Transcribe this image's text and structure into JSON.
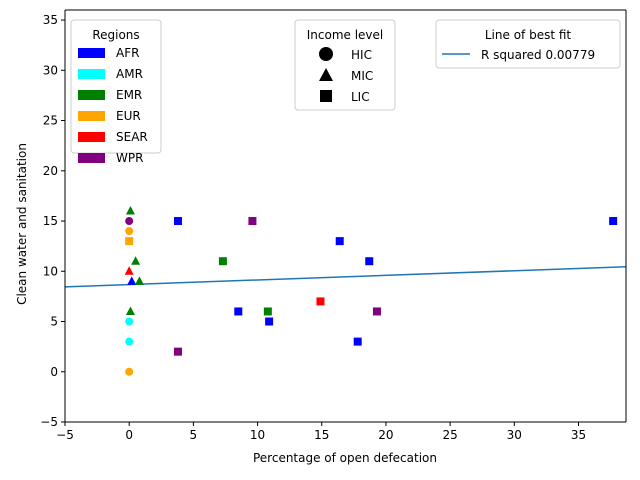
{
  "chart_data": {
    "type": "scatter",
    "xlabel": "Percentage of open defecation",
    "ylabel": "Clean water and sanitation",
    "xlim": [
      -5,
      38.7
    ],
    "ylim": [
      -5,
      36
    ],
    "xticks": [
      -5,
      0,
      5,
      10,
      15,
      20,
      25,
      30,
      35
    ],
    "yticks": [
      -5,
      0,
      5,
      10,
      15,
      20,
      25,
      30,
      35
    ],
    "grid": false,
    "legends": {
      "regions": {
        "title": "Regions",
        "placement": "top-left",
        "items": [
          {
            "label": "AFR",
            "color": "#0000ff"
          },
          {
            "label": "AMR",
            "color": "#00ffff"
          },
          {
            "label": "EMR",
            "color": "#008000"
          },
          {
            "label": "EUR",
            "color": "#ffa500"
          },
          {
            "label": "SEAR",
            "color": "#ff0000"
          },
          {
            "label": "WPR",
            "color": "#800080"
          }
        ]
      },
      "income": {
        "title": "Income level",
        "placement": "top-center",
        "items": [
          {
            "label": "HIC",
            "marker": "circle"
          },
          {
            "label": "MIC",
            "marker": "triangle"
          },
          {
            "label": "LIC",
            "marker": "square"
          }
        ]
      },
      "fit": {
        "title": "Line of best fit",
        "placement": "top-right",
        "label": "R squared 0.00779",
        "color": "#1f77b4"
      }
    },
    "fit_line": {
      "x": [
        -5,
        38.7
      ],
      "y": [
        8.45,
        10.45
      ]
    },
    "points": [
      {
        "x": 3.8,
        "y": 15,
        "region": "AFR",
        "income": "LIC"
      },
      {
        "x": 8.5,
        "y": 6,
        "region": "AFR",
        "income": "LIC"
      },
      {
        "x": 10.9,
        "y": 5,
        "region": "AFR",
        "income": "LIC"
      },
      {
        "x": 16.4,
        "y": 13,
        "region": "AFR",
        "income": "LIC"
      },
      {
        "x": 17.8,
        "y": 3,
        "region": "AFR",
        "income": "LIC"
      },
      {
        "x": 18.7,
        "y": 11,
        "region": "AFR",
        "income": "LIC"
      },
      {
        "x": 37.7,
        "y": 15,
        "region": "AFR",
        "income": "LIC"
      },
      {
        "x": 0.2,
        "y": 9,
        "region": "AFR",
        "income": "MIC"
      },
      {
        "x": 7.3,
        "y": 11,
        "region": "EMR",
        "income": "LIC"
      },
      {
        "x": 10.8,
        "y": 6,
        "region": "EMR",
        "income": "LIC"
      },
      {
        "x": 0.1,
        "y": 16,
        "region": "EMR",
        "income": "MIC"
      },
      {
        "x": 0.5,
        "y": 11,
        "region": "EMR",
        "income": "MIC"
      },
      {
        "x": 0.8,
        "y": 9,
        "region": "EMR",
        "income": "MIC"
      },
      {
        "x": 0.1,
        "y": 6,
        "region": "EMR",
        "income": "MIC"
      },
      {
        "x": 0.0,
        "y": 5,
        "region": "AMR",
        "income": "HIC"
      },
      {
        "x": 0.0,
        "y": 3,
        "region": "AMR",
        "income": "HIC"
      },
      {
        "x": 0.0,
        "y": 14,
        "region": "EUR",
        "income": "HIC"
      },
      {
        "x": 0.0,
        "y": 13,
        "region": "EUR",
        "income": "LIC"
      },
      {
        "x": 0.0,
        "y": 0,
        "region": "EUR",
        "income": "HIC"
      },
      {
        "x": 0.0,
        "y": 10,
        "region": "SEAR",
        "income": "MIC"
      },
      {
        "x": 14.9,
        "y": 7,
        "region": "SEAR",
        "income": "LIC"
      },
      {
        "x": 0.0,
        "y": 15,
        "region": "WPR",
        "income": "HIC"
      },
      {
        "x": 3.8,
        "y": 2,
        "region": "WPR",
        "income": "LIC"
      },
      {
        "x": 9.6,
        "y": 15,
        "region": "WPR",
        "income": "LIC"
      },
      {
        "x": 19.3,
        "y": 6,
        "region": "WPR",
        "income": "LIC"
      }
    ]
  }
}
